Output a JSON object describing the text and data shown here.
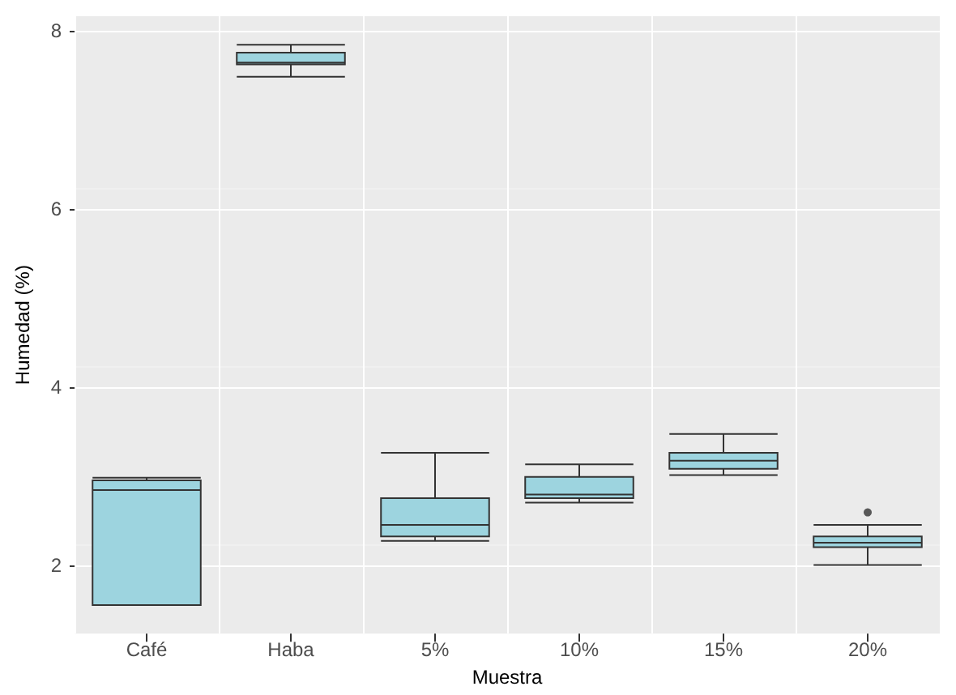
{
  "chart_data": {
    "type": "box",
    "xlabel": "Muestra",
    "ylabel": "Humedad (%)",
    "categories": [
      "Café",
      "Haba",
      "5%",
      "10%",
      "15%",
      "20%"
    ],
    "color": "#9dd4df",
    "boxes": [
      {
        "low": 1.55,
        "q1": 1.55,
        "median": 2.84,
        "q3": 2.95,
        "high": 2.98
      },
      {
        "low": 7.48,
        "q1": 7.62,
        "median": 7.64,
        "q3": 7.75,
        "high": 7.84
      },
      {
        "low": 2.27,
        "q1": 2.32,
        "median": 2.45,
        "q3": 2.75,
        "high": 3.26
      },
      {
        "low": 2.7,
        "q1": 2.75,
        "median": 2.79,
        "q3": 2.99,
        "high": 3.13
      },
      {
        "low": 3.01,
        "q1": 3.08,
        "median": 3.17,
        "q3": 3.26,
        "high": 3.47
      },
      {
        "low": 2.0,
        "q1": 2.2,
        "median": 2.25,
        "q3": 2.32,
        "high": 2.45,
        "outliers": [
          2.59
        ]
      }
    ],
    "ylim": [
      1.23,
      8.16
    ],
    "yticks": [
      2,
      4,
      6,
      8
    ],
    "grid": true
  }
}
